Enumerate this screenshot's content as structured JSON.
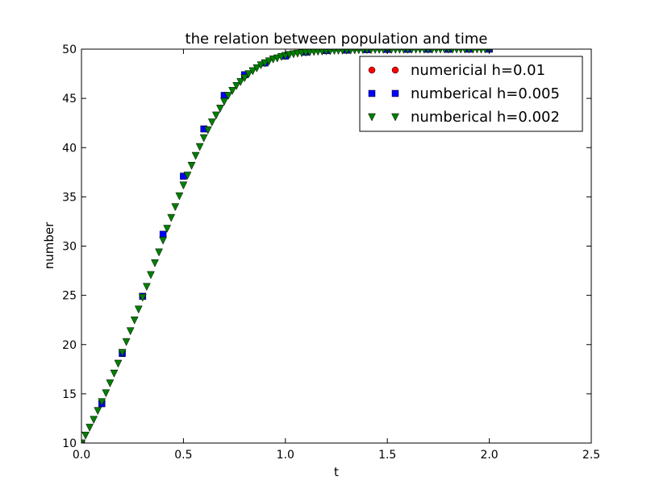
{
  "chart_data": {
    "type": "scatter",
    "title": "the relation between population and time",
    "xlabel": "t",
    "ylabel": "number",
    "xlim": [
      0.0,
      2.5
    ],
    "ylim": [
      10,
      50
    ],
    "xticks": [
      0.0,
      0.5,
      1.0,
      1.5,
      2.0,
      2.5
    ],
    "yticks": [
      10,
      15,
      20,
      25,
      30,
      35,
      40,
      45,
      50
    ],
    "xtick_labels": [
      "0.0",
      "0.5",
      "1.0",
      "1.5",
      "2.0",
      "2.5"
    ],
    "ytick_labels": [
      "10",
      "15",
      "20",
      "25",
      "30",
      "35",
      "40",
      "45",
      "50"
    ],
    "grid": false,
    "legend_position": "top-right",
    "series": [
      {
        "name": "numericial h=0.01",
        "marker": "circle",
        "color": "#ff0000",
        "x": [
          2.0
        ],
        "y": [
          50.0
        ]
      },
      {
        "name": "numberical h=0.005",
        "marker": "square",
        "color": "#0000ff",
        "x": [
          0.0,
          0.1,
          0.2,
          0.3,
          0.4,
          0.5,
          0.6,
          0.7,
          0.8,
          0.9,
          1.0,
          1.1,
          1.2,
          1.3,
          1.4,
          1.5,
          1.6,
          1.7,
          1.8,
          1.9,
          2.0
        ],
        "y": [
          10.0,
          14.0,
          19.1,
          24.9,
          31.2,
          37.1,
          41.9,
          45.3,
          47.4,
          48.6,
          49.3,
          49.7,
          49.85,
          49.9,
          49.95,
          49.97,
          49.98,
          49.99,
          49.99,
          50.0,
          50.0
        ]
      },
      {
        "name": "numberical h=0.002",
        "marker": "triangle-down",
        "color": "#007f00",
        "x": [
          0.0,
          0.02,
          0.04,
          0.06,
          0.08,
          0.1,
          0.12,
          0.14,
          0.16,
          0.18,
          0.2,
          0.22,
          0.24,
          0.26,
          0.28,
          0.3,
          0.32,
          0.34,
          0.36,
          0.38,
          0.4,
          0.42,
          0.44,
          0.46,
          0.48,
          0.5,
          0.52,
          0.54,
          0.56,
          0.58,
          0.6,
          0.62,
          0.64,
          0.66,
          0.68,
          0.7,
          0.72,
          0.74,
          0.76,
          0.78,
          0.8,
          0.82,
          0.84,
          0.86,
          0.88,
          0.9,
          0.92,
          0.94,
          0.96,
          0.98,
          1.0,
          1.02,
          1.04,
          1.06,
          1.08,
          1.1,
          1.12,
          1.14,
          1.16,
          1.18,
          1.2,
          1.22,
          1.24,
          1.26,
          1.28,
          1.3,
          1.32,
          1.34,
          1.36,
          1.38,
          1.4,
          1.42,
          1.44,
          1.46,
          1.48,
          1.5,
          1.52,
          1.54,
          1.56,
          1.58,
          1.6,
          1.62,
          1.64,
          1.66,
          1.68,
          1.7,
          1.72,
          1.74,
          1.76,
          1.78,
          1.8,
          1.82,
          1.84,
          1.86,
          1.88,
          1.9,
          1.92,
          1.94,
          1.96,
          1.98,
          2.0
        ],
        "y": [
          10.0,
          10.8,
          11.6,
          12.4,
          13.3,
          14.2,
          15.1,
          16.1,
          17.1,
          18.1,
          19.2,
          20.3,
          21.4,
          22.5,
          23.6,
          24.8,
          25.9,
          27.1,
          28.3,
          29.4,
          30.6,
          31.8,
          32.9,
          34.0,
          35.1,
          36.2,
          37.2,
          38.2,
          39.2,
          40.1,
          41.0,
          41.8,
          42.6,
          43.3,
          44.0,
          44.7,
          45.3,
          45.8,
          46.3,
          46.7,
          47.1,
          47.5,
          47.8,
          48.1,
          48.4,
          48.6,
          48.8,
          49.0,
          49.1,
          49.25,
          49.35,
          49.45,
          49.52,
          49.58,
          49.63,
          49.68,
          49.72,
          49.75,
          49.78,
          49.8,
          49.83,
          49.85,
          49.87,
          49.88,
          49.89,
          49.9,
          49.91,
          49.92,
          49.93,
          49.94,
          49.95,
          49.95,
          49.96,
          49.96,
          49.97,
          49.97,
          49.97,
          49.98,
          49.98,
          49.98,
          49.98,
          49.99,
          49.99,
          49.99,
          49.99,
          49.99,
          49.99,
          49.99,
          50.0,
          50.0,
          50.0,
          50.0,
          50.0,
          50.0,
          50.0,
          50.0,
          50.0,
          50.0,
          50.0,
          50.0,
          50.0
        ]
      }
    ]
  }
}
